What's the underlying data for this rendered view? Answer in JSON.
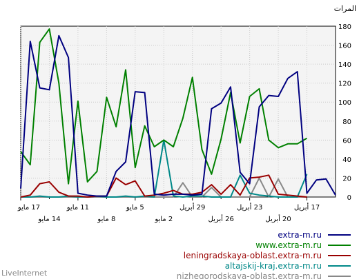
{
  "chart_data": {
    "type": "line",
    "ylabel": "المرات",
    "ylim": [
      0,
      180
    ],
    "yticks": [
      0,
      20,
      40,
      60,
      80,
      100,
      120,
      140,
      160,
      180
    ],
    "grid": true,
    "x_labels_row1": [
      "17 مايو",
      "11 مايو",
      "5 مايو",
      "29 أبريل",
      "23 أبريل",
      "17 أبريل"
    ],
    "x_labels_row2": [
      "14 مايو",
      "8 مايو",
      "2 مايو",
      "26 أبريل",
      "20 أبريل"
    ],
    "legend_position": "bottom-right",
    "series": [
      {
        "name": "extra-m.ru",
        "color": "#000080",
        "values": [
          9,
          164,
          115,
          113,
          170,
          147,
          4,
          2,
          1,
          1,
          27,
          37,
          111,
          110,
          3,
          2,
          3,
          3,
          2,
          3,
          93,
          99,
          116,
          26,
          14,
          95,
          107,
          106,
          125,
          132,
          4,
          18,
          19,
          2
        ]
      },
      {
        "name": "www.extra-m.ru",
        "color": "#008000",
        "values": [
          48,
          34,
          163,
          177,
          120,
          14,
          101,
          16,
          27,
          105,
          74,
          134,
          31,
          75,
          53,
          60,
          53,
          83,
          126,
          50,
          24,
          61,
          110,
          57,
          106,
          114,
          60,
          52,
          56,
          56,
          62,
          null,
          null,
          null
        ]
      },
      {
        "name": "leningradskaya-oblast.extra-m.ru",
        "color": "#990000",
        "values": [
          0,
          2,
          14,
          16,
          5,
          1,
          1,
          0,
          1,
          1,
          20,
          13,
          17,
          1,
          2,
          4,
          7,
          3,
          3,
          5,
          13,
          3,
          13,
          2,
          20,
          21,
          23,
          3,
          2,
          1,
          0,
          null,
          null,
          null
        ]
      },
      {
        "name": "altajskij-kraj.extra-m.ru",
        "color": "#008888",
        "values": [
          0,
          0,
          1,
          0,
          0,
          1,
          0,
          0,
          1,
          0,
          0,
          1,
          0,
          1,
          0,
          60,
          1,
          0,
          1,
          1,
          0,
          0,
          0,
          23,
          4,
          2,
          1,
          0,
          0,
          0,
          24,
          null,
          null,
          null
        ]
      },
      {
        "name": "nizhegorodskaya-oblast.extra-m.ru",
        "color": "#888888",
        "values": [
          0,
          0,
          0,
          0,
          0,
          0,
          0,
          0,
          0,
          0,
          0,
          0,
          0,
          0,
          0,
          0,
          0,
          15,
          0,
          0,
          10,
          0,
          0,
          0,
          0,
          20,
          0,
          19,
          0,
          0,
          0,
          null,
          null,
          null
        ]
      }
    ]
  },
  "footer": {
    "brand": "LiveInternet"
  }
}
